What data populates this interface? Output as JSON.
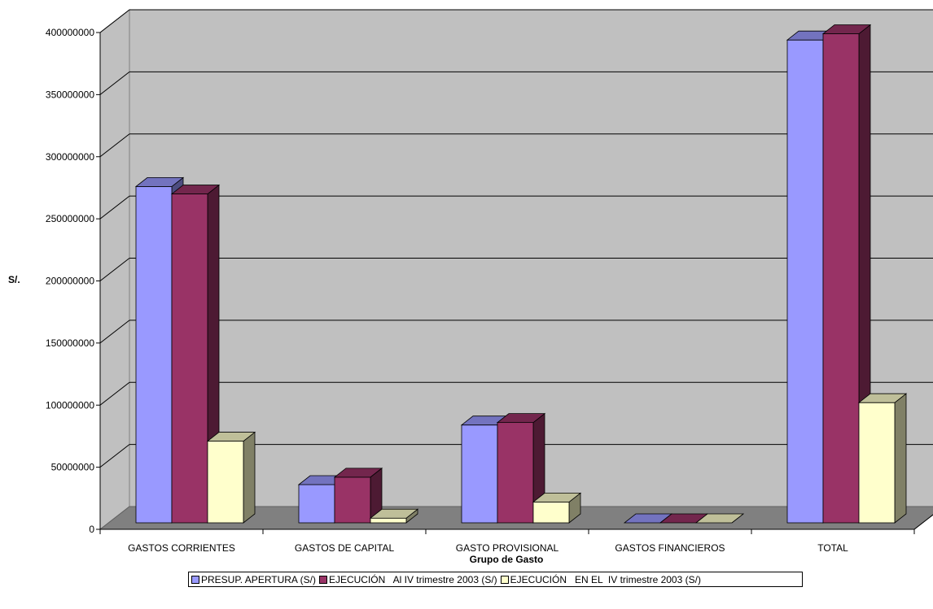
{
  "chart_data": {
    "type": "bar",
    "xlabel": "Grupo de Gasto",
    "ylabel": "S/.",
    "ylim": [
      0,
      400000000
    ],
    "yticks": [
      "0",
      "50000000",
      "100000000",
      "150000000",
      "200000000",
      "250000000",
      "300000000",
      "350000000",
      "400000000"
    ],
    "categories": [
      "GASTOS CORRIENTES",
      "GASTOS DE CAPITAL",
      "GASTO PROVISIONAL",
      "GASTOS FINANCIEROS",
      "TOTAL"
    ],
    "grid": true,
    "legend_position": "bottom",
    "series": [
      {
        "name": "PRESUP. APERTURA (S/)",
        "color": "#9999ff",
        "values": [
          276000000,
          36000000,
          84000000,
          0,
          394000000
        ]
      },
      {
        "name": "EJECUCIÓN   Al IV trimestre 2003 (S/)",
        "color": "#993366",
        "values": [
          270000000,
          42000000,
          86000000,
          0,
          399000000
        ]
      },
      {
        "name": "EJECUCIÓN   EN EL  IV trimestre 2003 (S/)",
        "color": "#ffffcc",
        "values": [
          71000000,
          9000000,
          22000000,
          0,
          102000000
        ]
      }
    ],
    "colors": {
      "wall": "#c0c0c0",
      "floor": "#808080",
      "gridline": "#000000"
    }
  }
}
